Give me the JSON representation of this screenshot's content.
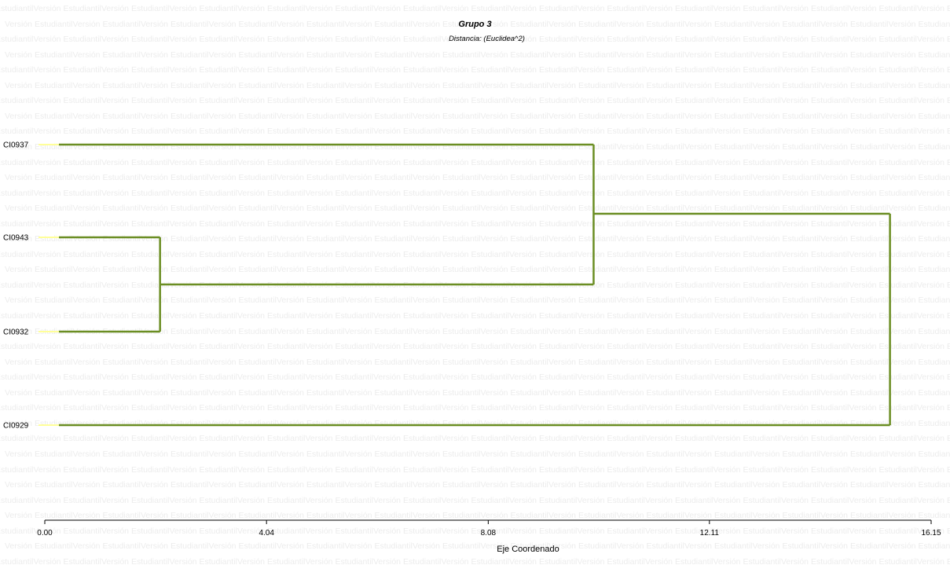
{
  "watermark": "Versión Estudiantil",
  "chart_data": {
    "type": "dendrogram",
    "title": "Grupo 3",
    "subtitle": "Distancia: (Euclidea^2)",
    "xlabel": "Eje Coordenado",
    "xlim": [
      0,
      16.15
    ],
    "xticks": [
      "0.00",
      "4.04",
      "8.08",
      "12.11",
      "16.15"
    ],
    "tick_values": [
      0,
      4.04,
      8.08,
      12.11,
      16.15
    ],
    "leaves": [
      "CI0937",
      "CI0943",
      "CI0932",
      "CI0929"
    ],
    "merges": [
      {
        "members": [
          "CI0943",
          "CI0932"
        ],
        "height": 2.1
      },
      {
        "members": [
          "CI0937",
          "CI0943+CI0932"
        ],
        "height": 10.0
      },
      {
        "members": [
          "CI0937+CI0943+CI0932",
          "CI0929"
        ],
        "height": 15.4
      }
    ],
    "colors": {
      "branch": "#6b8e23",
      "leaf_stub": "#ffff99",
      "axis": "#000000"
    }
  }
}
